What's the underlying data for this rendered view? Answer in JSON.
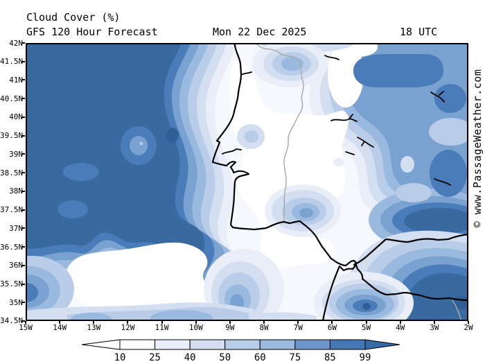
{
  "title": {
    "line1": "Cloud Cover (%)",
    "line2": "GFS 120 Hour Forecast",
    "datetime": "Mon 22 Dec 2025",
    "time_utc": "18 UTC"
  },
  "map": {
    "lat_labels": [
      "42N",
      "41.5N",
      "41N",
      "40.5N",
      "40N",
      "39.5N",
      "39N",
      "38.5N",
      "38N",
      "37.5N",
      "37N",
      "36.5N",
      "36N",
      "35.5N",
      "35N",
      "34.5N"
    ],
    "lon_labels": [
      "15W",
      "14W",
      "13W",
      "12W",
      "11W",
      "10W",
      "9W",
      "8W",
      "7W",
      "6W",
      "5W",
      "4W",
      "3W",
      "2W"
    ],
    "lat_range": [
      "42N",
      "34.5N"
    ],
    "lon_range": [
      "15W",
      "2W"
    ]
  },
  "colorbar": {
    "tick_labels": [
      "10",
      "25",
      "40",
      "50",
      "60",
      "75",
      "85",
      "99"
    ],
    "segment_colors": [
      "#fcfdfe",
      "#e9eef8",
      "#d4def1",
      "#b9cce8",
      "#9ab9de",
      "#6d97ca",
      "#4478b4"
    ],
    "left_arrow_color": "#ffffff",
    "right_arrow_color": "#386aa6"
  },
  "palette": {
    "cloud_100_deep": "#2f5f95",
    "cloud_99_plus": "#38699f",
    "cloud_85_99": "#4a7cba",
    "cloud_75_85": "#7aa2d0",
    "cloud_60_75": "#9ab9de",
    "cloud_50_60": "#b9cce8",
    "cloud_40_50": "#d4def1",
    "cloud_25_40": "#e9eef8",
    "cloud_10_25": "#f5f8fd",
    "cloud_clear": "#ffffff",
    "coastline": "#000000",
    "country_border": "#aaaaaa"
  },
  "watermark": "© www.PassageWeather.com"
}
